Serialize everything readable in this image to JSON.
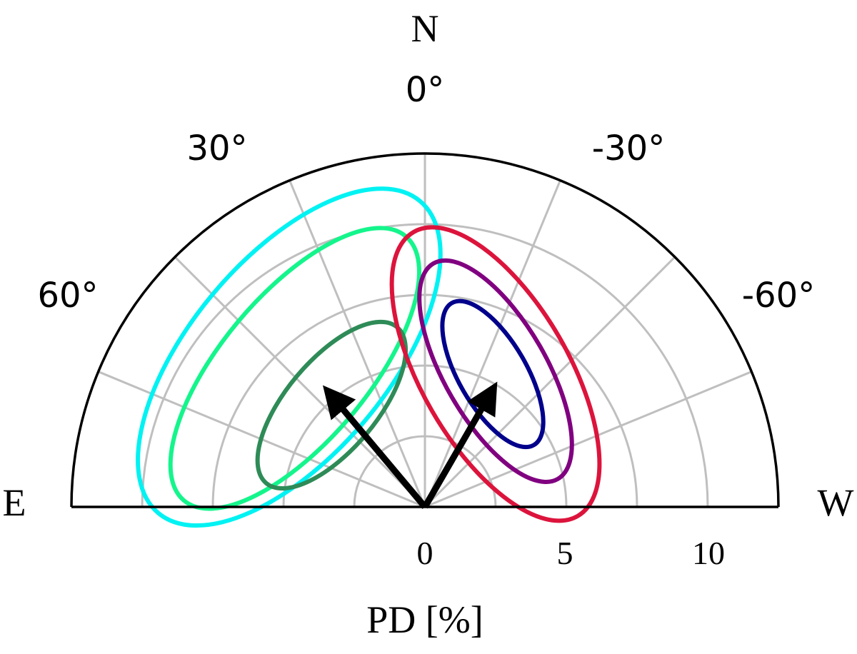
{
  "chart_data": {
    "type": "polar-semicircle",
    "compass": {
      "north": "N",
      "east": "E",
      "west": "W"
    },
    "angle_ticks": [
      {
        "deg": 0,
        "label": "0°"
      },
      {
        "deg": 30,
        "label": "30°"
      },
      {
        "deg": -30,
        "label": "-30°"
      },
      {
        "deg": 60,
        "label": "60°"
      },
      {
        "deg": -60,
        "label": "-60°"
      }
    ],
    "radial_ticks": [
      {
        "value": 0,
        "label": "0"
      },
      {
        "value": 5,
        "label": "5"
      },
      {
        "value": 10,
        "label": "10"
      }
    ],
    "radial_grid": [
      2.5,
      5,
      7.5,
      10
    ],
    "angular_grid": [
      -67.5,
      -45,
      -22.5,
      0,
      22.5,
      45,
      67.5
    ],
    "rlim": [
      0,
      12.5
    ],
    "angle_range": [
      -90,
      90
    ],
    "xlabel": "PD [%]",
    "grid": true,
    "colors": {
      "grid": "#bfbfbf",
      "frame": "#000000",
      "left_outer": "#00f2f2",
      "left_mid": "#14f58c",
      "left_inner": "#2e8b57",
      "right_outer": "#dc143c",
      "right_mid": "#800080",
      "right_inner": "#00008b",
      "arrow": "#000000"
    },
    "vectors": [
      {
        "angle_deg": 40,
        "pd": 5.3
      },
      {
        "angle_deg": -30,
        "pd": 4.8
      }
    ],
    "contours": [
      {
        "side": "left",
        "level": "outer",
        "cx": -4.8,
        "cy": 5.3,
        "a": 3.5,
        "b": 7.2,
        "rot_deg": 40
      },
      {
        "side": "left",
        "level": "mid",
        "cx": -4.6,
        "cy": 4.9,
        "a": 2.6,
        "b": 6.1,
        "rot_deg": 40
      },
      {
        "side": "left",
        "level": "inner",
        "cx": -3.3,
        "cy": 3.6,
        "a": 1.6,
        "b": 3.6,
        "rot_deg": 40
      },
      {
        "side": "right",
        "level": "outer",
        "cx": 2.5,
        "cy": 4.7,
        "a": 2.6,
        "b": 5.8,
        "rot_deg": -30
      },
      {
        "side": "right",
        "level": "mid",
        "cx": 2.5,
        "cy": 4.8,
        "a": 1.8,
        "b": 4.4,
        "rot_deg": -30
      },
      {
        "side": "right",
        "level": "inner",
        "cx": 2.4,
        "cy": 4.7,
        "a": 1.2,
        "b": 2.9,
        "rot_deg": -30
      }
    ]
  }
}
